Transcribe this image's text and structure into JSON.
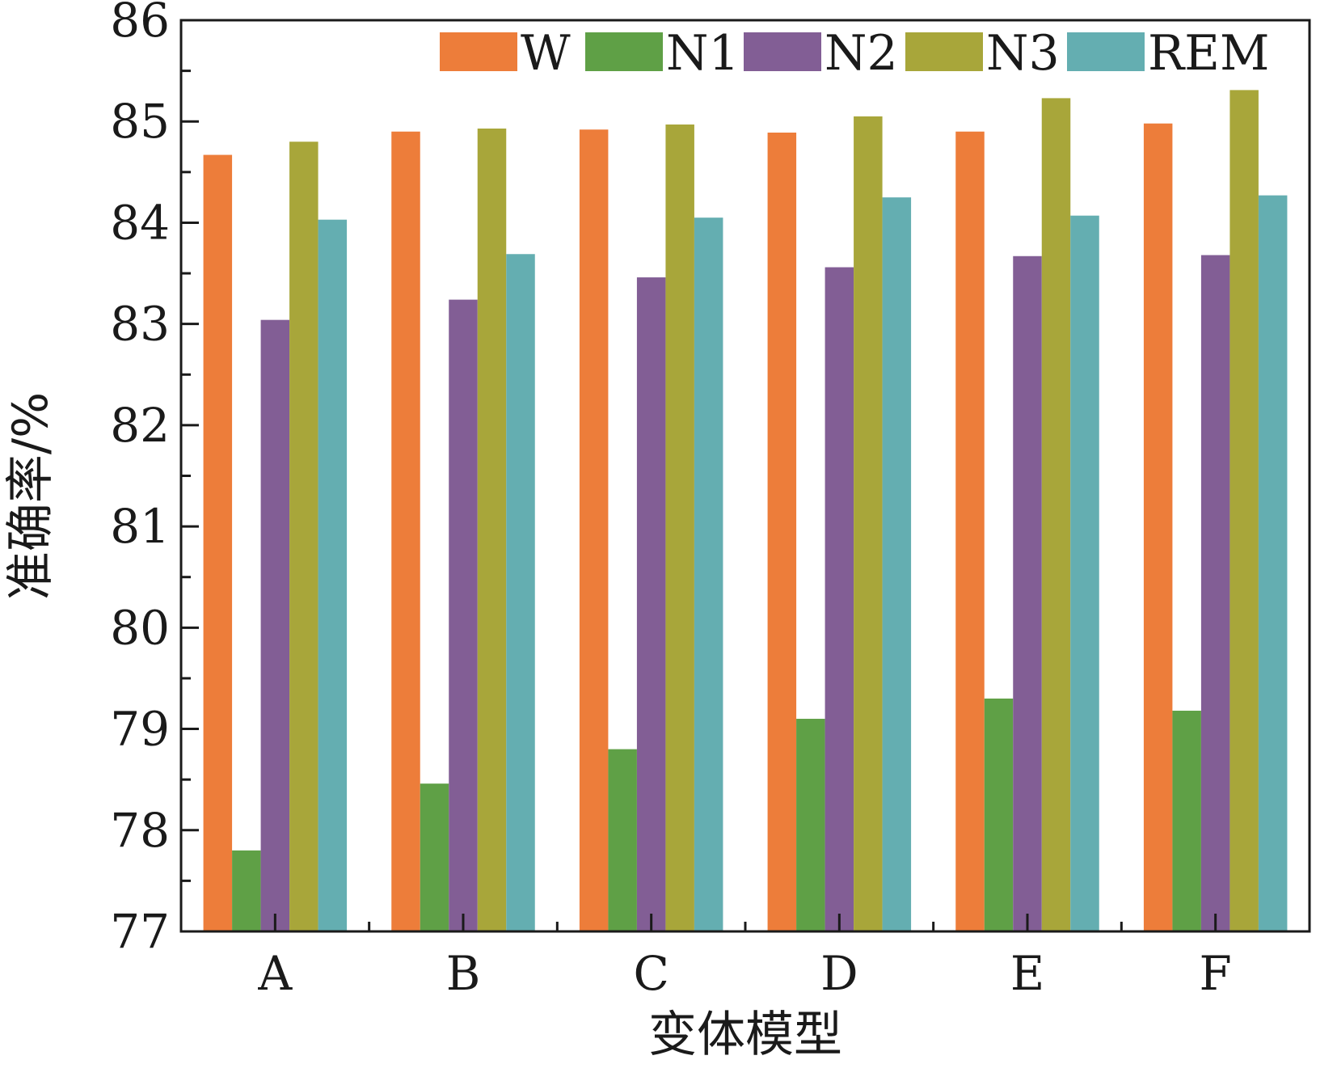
{
  "chart_data": {
    "type": "bar",
    "xlabel": "变体模型",
    "ylabel": "准确率/%",
    "ylim": [
      77,
      86
    ],
    "yticks": [
      77,
      78,
      79,
      80,
      81,
      82,
      83,
      84,
      85,
      86
    ],
    "categories": [
      "A",
      "B",
      "C",
      "D",
      "E",
      "F"
    ],
    "legend_position": "top-right",
    "grid": false,
    "series": [
      {
        "name": "W",
        "color": "#ED7D3A",
        "values": [
          84.67,
          84.9,
          84.92,
          84.89,
          84.9,
          84.98
        ]
      },
      {
        "name": "N1",
        "color": "#5FA046",
        "values": [
          77.8,
          78.46,
          78.8,
          79.1,
          79.3,
          79.18
        ]
      },
      {
        "name": "N2",
        "color": "#825E95",
        "values": [
          83.04,
          83.24,
          83.46,
          83.56,
          83.67,
          83.68
        ]
      },
      {
        "name": "N3",
        "color": "#A8A63A",
        "values": [
          84.8,
          84.93,
          84.97,
          85.05,
          85.23,
          85.31
        ]
      },
      {
        "name": "REM",
        "color": "#64AEB1",
        "values": [
          84.03,
          83.69,
          84.05,
          84.25,
          84.07,
          84.27
        ]
      }
    ]
  }
}
